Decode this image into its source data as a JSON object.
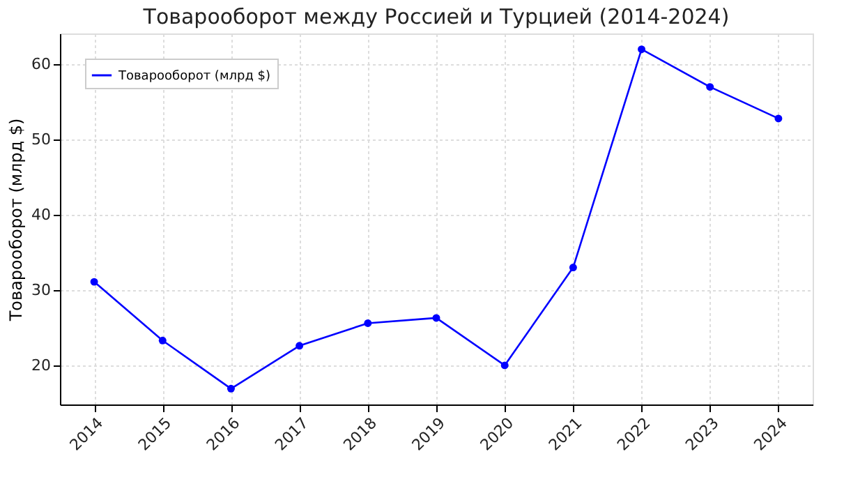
{
  "chart_data": {
    "type": "line",
    "title": "Товарооборот между Россией и Турцией (2014-2024)",
    "ylabel": "Товарооборот (млрд $)",
    "x": [
      2014,
      2015,
      2016,
      2017,
      2018,
      2019,
      2020,
      2021,
      2022,
      2023,
      2024
    ],
    "series": [
      {
        "name": "Товарооборот (млрд $)",
        "color": "#0000ff",
        "values": [
          31.1,
          23.3,
          16.9,
          22.6,
          25.6,
          26.3,
          20.0,
          33.0,
          62.0,
          57.0,
          52.8
        ]
      }
    ],
    "xlim": [
      2013.5,
      2024.5
    ],
    "xticks": [
      2014,
      2015,
      2016,
      2017,
      2018,
      2019,
      2020,
      2021,
      2022,
      2023,
      2024
    ],
    "ylim": [
      14.8,
      64.1
    ],
    "yticks": [
      20,
      30,
      40,
      50,
      60
    ],
    "grid": true,
    "legend": "top left",
    "marker": "circle",
    "line_style": "solid"
  }
}
